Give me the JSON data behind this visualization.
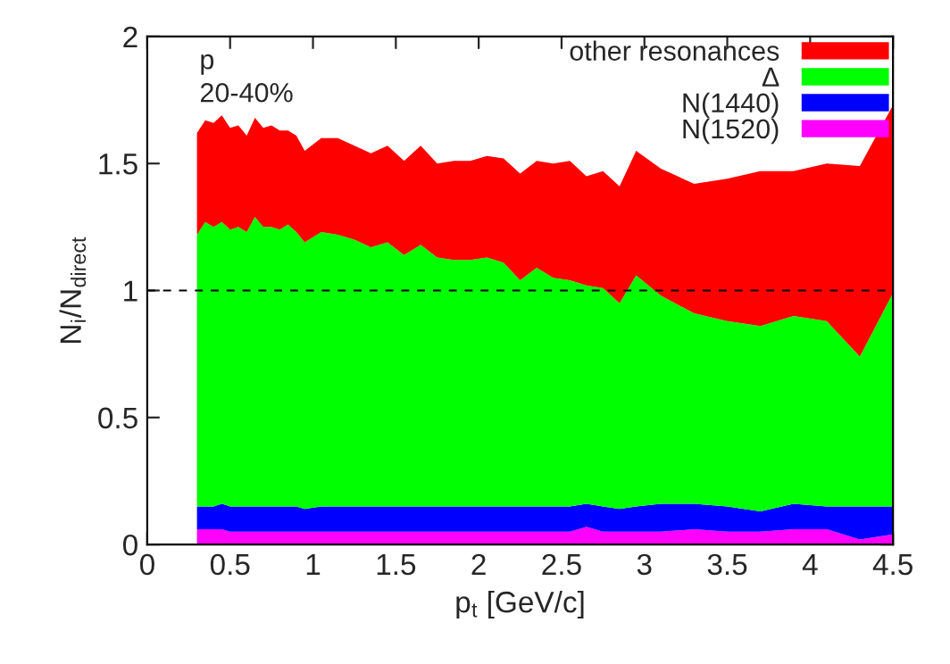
{
  "chart_data": {
    "type": "area",
    "stacked": true,
    "xlabel": "p$_{t}$ [GeV/c]",
    "ylabel": "N$_{i}$/N$_{direct}$",
    "annotations": [
      "p",
      "20-40%"
    ],
    "x": [
      0.3,
      0.35,
      0.4,
      0.45,
      0.5,
      0.55,
      0.6,
      0.65,
      0.7,
      0.75,
      0.8,
      0.85,
      0.9,
      0.95,
      1.05,
      1.15,
      1.25,
      1.35,
      1.45,
      1.55,
      1.65,
      1.75,
      1.85,
      1.95,
      2.05,
      2.15,
      2.25,
      2.35,
      2.45,
      2.55,
      2.65,
      2.75,
      2.85,
      2.95,
      3.1,
      3.3,
      3.5,
      3.7,
      3.9,
      4.1,
      4.3,
      4.5
    ],
    "series": [
      {
        "name": "N(1520)",
        "color": "#ff00ff",
        "values": [
          0.06,
          0.06,
          0.06,
          0.06,
          0.05,
          0.05,
          0.05,
          0.05,
          0.05,
          0.05,
          0.05,
          0.05,
          0.05,
          0.05,
          0.05,
          0.05,
          0.05,
          0.05,
          0.05,
          0.05,
          0.05,
          0.05,
          0.05,
          0.05,
          0.05,
          0.05,
          0.05,
          0.05,
          0.05,
          0.05,
          0.07,
          0.05,
          0.05,
          0.05,
          0.05,
          0.06,
          0.05,
          0.05,
          0.06,
          0.06,
          0.02,
          0.04
        ]
      },
      {
        "name": "N(1440)",
        "color": "#0000ff",
        "values": [
          0.09,
          0.09,
          0.09,
          0.1,
          0.1,
          0.1,
          0.1,
          0.1,
          0.1,
          0.1,
          0.1,
          0.1,
          0.1,
          0.09,
          0.1,
          0.1,
          0.1,
          0.1,
          0.1,
          0.1,
          0.1,
          0.1,
          0.1,
          0.1,
          0.1,
          0.1,
          0.1,
          0.1,
          0.1,
          0.1,
          0.09,
          0.1,
          0.09,
          0.1,
          0.11,
          0.1,
          0.1,
          0.08,
          0.1,
          0.09,
          0.13,
          0.11
        ]
      },
      {
        "name": "Δ",
        "color": "#00ff00",
        "values": [
          1.07,
          1.12,
          1.1,
          1.11,
          1.09,
          1.1,
          1.08,
          1.14,
          1.1,
          1.1,
          1.09,
          1.11,
          1.08,
          1.05,
          1.08,
          1.07,
          1.05,
          1.02,
          1.04,
          0.99,
          1.03,
          0.98,
          0.97,
          0.97,
          0.98,
          0.96,
          0.89,
          0.94,
          0.9,
          0.89,
          0.86,
          0.86,
          0.81,
          0.91,
          0.82,
          0.75,
          0.73,
          0.73,
          0.74,
          0.73,
          0.59,
          0.84
        ]
      },
      {
        "name": "other resonances",
        "color": "#ff0000",
        "values": [
          0.4,
          0.4,
          0.41,
          0.42,
          0.4,
          0.4,
          0.38,
          0.39,
          0.39,
          0.4,
          0.39,
          0.37,
          0.38,
          0.36,
          0.37,
          0.38,
          0.37,
          0.37,
          0.38,
          0.37,
          0.39,
          0.37,
          0.39,
          0.39,
          0.4,
          0.41,
          0.42,
          0.42,
          0.45,
          0.47,
          0.43,
          0.46,
          0.46,
          0.49,
          0.5,
          0.51,
          0.56,
          0.61,
          0.57,
          0.62,
          0.75,
          0.74
        ]
      }
    ],
    "xlim": [
      0,
      4.5
    ],
    "xticks": [
      0,
      0.5,
      1,
      1.5,
      2,
      2.5,
      3,
      3.5,
      4,
      4.5
    ],
    "ylim": [
      0,
      2
    ],
    "yticks": [
      0,
      0.5,
      1,
      1.5,
      2
    ],
    "ref_lines": [
      {
        "axis": "y",
        "value": 1,
        "color": "#000000",
        "line_style": "dashed"
      }
    ],
    "legend": "top right",
    "grid": false
  }
}
